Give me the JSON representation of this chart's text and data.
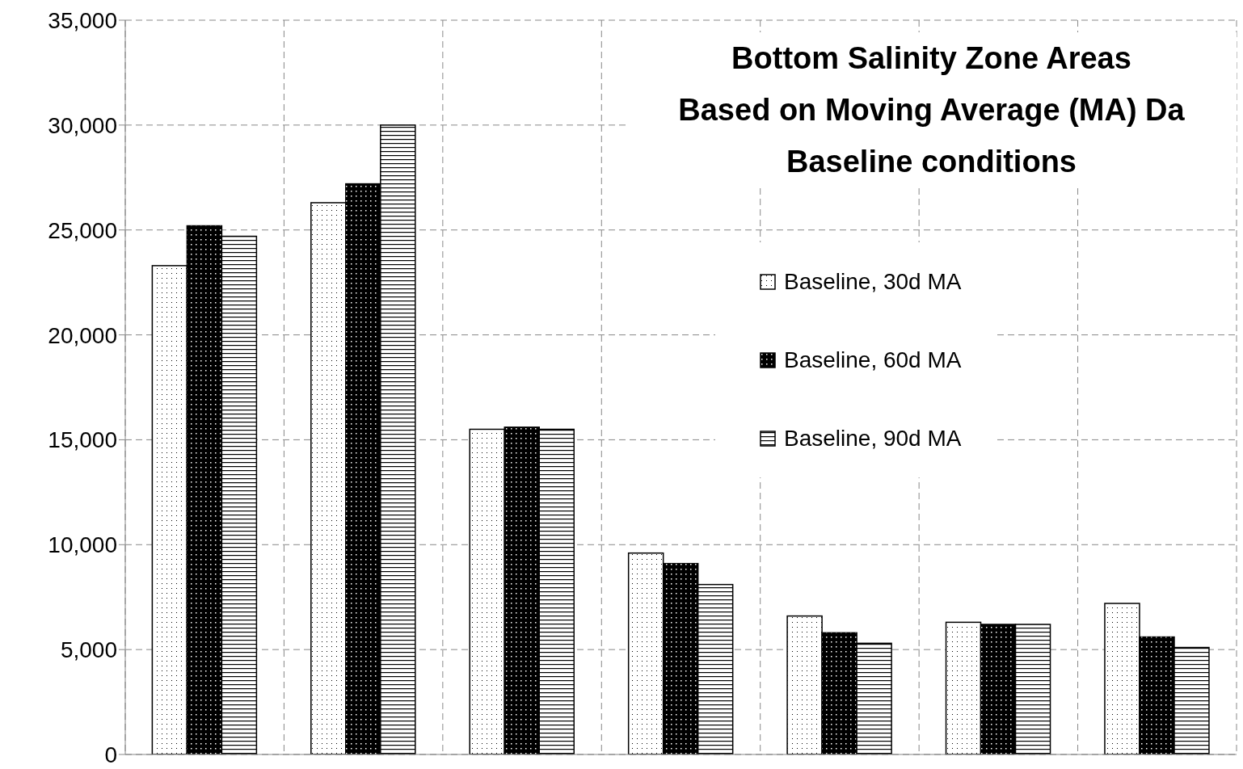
{
  "chart_data": {
    "type": "bar",
    "title": "Bottom Salinity Zone Areas",
    "subtitle": "Based on Moving Average (MA) Da\nBaseline conditions",
    "categories": [
      null,
      null,
      null,
      null,
      null,
      null,
      null
    ],
    "series": [
      {
        "name": "Baseline, 30d MA",
        "color": "#ffffff",
        "values": [
          23300,
          26300,
          15500,
          9600,
          6600,
          6300,
          7200
        ]
      },
      {
        "name": "Baseline, 60d MA",
        "color": "#000000",
        "values": [
          25200,
          27200,
          15600,
          9100,
          5800,
          6200,
          5600
        ]
      },
      {
        "name": "Baseline, 90d MA",
        "color": "#ffffff",
        "values": [
          24700,
          30000,
          15500,
          8100,
          5300,
          6200,
          5100
        ]
      }
    ],
    "ylim": [
      0,
      35000
    ],
    "yticks": [
      0,
      {
        "value": 5000,
        "label": "5,000"
      },
      {
        "value": 10000,
        "label": "10,000"
      },
      {
        "value": 15000,
        "label": "15,000"
      },
      {
        "value": 20000,
        "label": "20,000"
      },
      {
        "value": 25000,
        "label": "25,000"
      },
      {
        "value": 30000,
        "label": "30,000"
      },
      {
        "value": 35000,
        "label": "35,000"
      }
    ],
    "tick_labels": "y",
    "grid": true,
    "legend": "right"
  }
}
